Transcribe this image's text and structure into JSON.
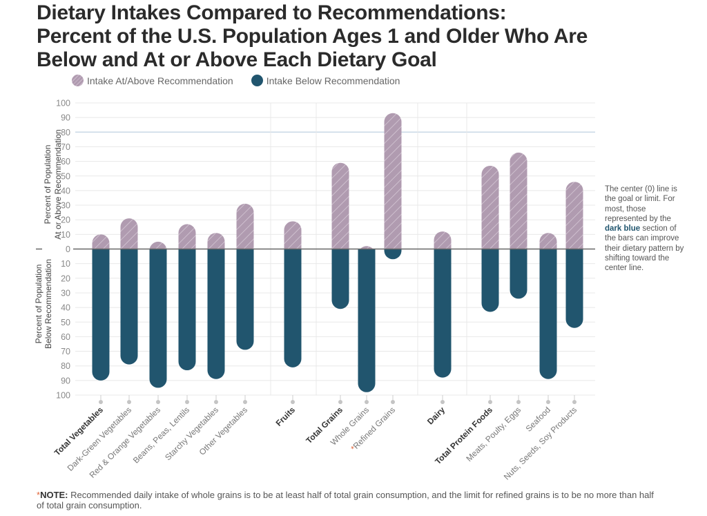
{
  "title_lines": [
    "Dietary Intakes Compared to Recommendations:",
    "Percent of the U.S. Population Ages 1 and Older Who Are",
    "Below and At or Above Each Dietary Goal"
  ],
  "legend": {
    "above_label": "Intake At/Above Recommendation",
    "below_label": "Intake Below Recommendation"
  },
  "side_note": {
    "before": "The center (0) line is the goal or limit. For most, those represented by the ",
    "highlight": "dark blue",
    "after": " section of the bars can improve their dietary pattern by shifting toward the center line."
  },
  "footnote": {
    "star": "*",
    "label": "NOTE:",
    "text": " Recommended daily intake of whole grains is to be at least half of total grain consumption, and the limit for refined grains is to be no more than half of total grain consumption."
  },
  "colors": {
    "above": "#b09bb0",
    "above_stripe": "#cdbccd",
    "below": "#21556e",
    "grid": "#e8e8e8",
    "highlight_grid": "#c9d8e6",
    "zero_line": "#666666",
    "asterisk": "#e0653a"
  },
  "chart_data": {
    "type": "bar",
    "title": "Dietary Intakes Compared to Recommendations: Percent of the U.S. Population Ages 1 and Older Who Are Below and At or Above Each Dietary Goal",
    "ylabel_top": [
      "Percent of Population",
      "At or Above Recommendation"
    ],
    "ylabel_bottom": [
      "Percent of Population",
      "Below Recommendation"
    ],
    "ylim_top": [
      0,
      100
    ],
    "ylim_bottom": [
      0,
      100
    ],
    "yticks": [
      0,
      10,
      20,
      30,
      40,
      50,
      60,
      70,
      80,
      90,
      100
    ],
    "highlight_gridline": 80,
    "grid": true,
    "legend_position": "top-left",
    "groups": [
      {
        "name": "Vegetables",
        "categories": [
          {
            "label": "Total Vegetables",
            "bold": true,
            "above": 10,
            "below": 90
          },
          {
            "label": "Dark-Green Vegetables",
            "bold": false,
            "above": 21,
            "below": 79
          },
          {
            "label": "Red & Orange Vegetables",
            "bold": false,
            "above": 5,
            "below": 95
          },
          {
            "label": "Beans, Peas, Lentils",
            "bold": false,
            "above": 17,
            "below": 83
          },
          {
            "label": "Starchy Vegetables",
            "bold": false,
            "above": 11,
            "below": 89
          },
          {
            "label": "Other Vegetables",
            "bold": false,
            "above": 31,
            "below": 69
          }
        ]
      },
      {
        "name": "Fruits",
        "categories": [
          {
            "label": "Fruits",
            "bold": true,
            "above": 19,
            "below": 81
          }
        ]
      },
      {
        "name": "Grains",
        "categories": [
          {
            "label": "Total Grains",
            "bold": true,
            "above": 59,
            "below": 41
          },
          {
            "label": "Whole Grains",
            "bold": false,
            "above": 2,
            "below": 98
          },
          {
            "label": "Refined Grains",
            "bold": false,
            "asterisk": true,
            "above": 93,
            "below": 7
          }
        ]
      },
      {
        "name": "Dairy",
        "categories": [
          {
            "label": "Dairy",
            "bold": true,
            "above": 12,
            "below": 88
          }
        ]
      },
      {
        "name": "Protein Foods",
        "categories": [
          {
            "label": "Total Protein Foods",
            "bold": true,
            "above": 57,
            "below": 43
          },
          {
            "label": "Meats, Poulty, Eggs",
            "bold": false,
            "above": 66,
            "below": 34
          },
          {
            "label": "Seafood",
            "bold": false,
            "above": 11,
            "below": 89
          },
          {
            "label": "Nuts, Seeds, Soy Products",
            "bold": false,
            "above": 46,
            "below": 54
          }
        ]
      }
    ]
  }
}
